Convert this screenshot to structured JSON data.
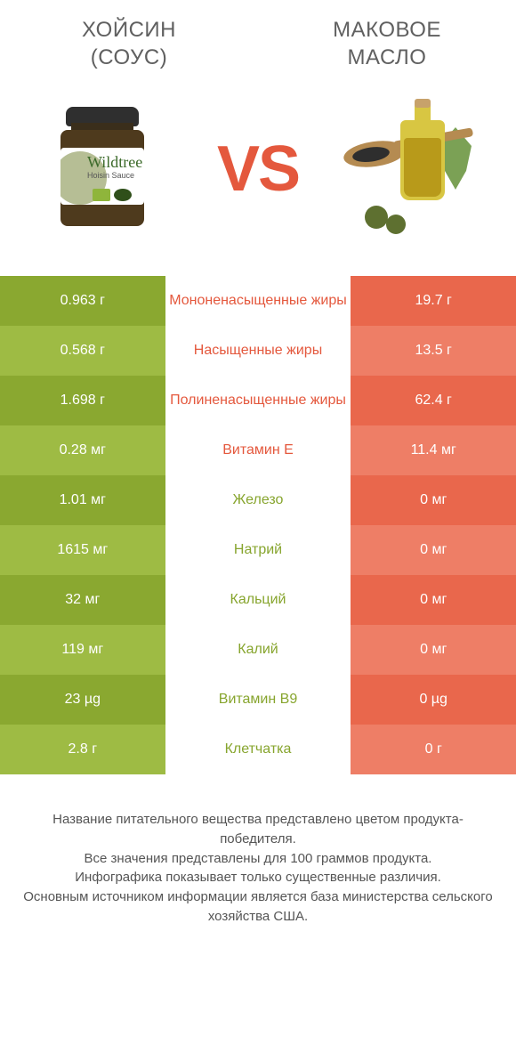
{
  "colors": {
    "green_dark": "#8aa830",
    "green_light": "#9ebb44",
    "orange_dark": "#e9674c",
    "orange_light": "#ee7e66",
    "green_text": "#87a52e",
    "orange_text": "#e4583d",
    "white": "#ffffff"
  },
  "products": {
    "left": {
      "title_line1": "Хойсин",
      "title_line2": "(соус)"
    },
    "right": {
      "title_line1": "Маковое",
      "title_line2": "масло"
    }
  },
  "vs_label": "VS",
  "rows": [
    {
      "left": "0.963 г",
      "label": "Мононенасыщенные жиры",
      "right": "19.7 г",
      "winner": "right"
    },
    {
      "left": "0.568 г",
      "label": "Насыщенные жиры",
      "right": "13.5 г",
      "winner": "right"
    },
    {
      "left": "1.698 г",
      "label": "Полиненасыщенные жиры",
      "right": "62.4 г",
      "winner": "right"
    },
    {
      "left": "0.28 мг",
      "label": "Витамин E",
      "right": "11.4 мг",
      "winner": "right"
    },
    {
      "left": "1.01 мг",
      "label": "Железо",
      "right": "0 мг",
      "winner": "left"
    },
    {
      "left": "1615 мг",
      "label": "Натрий",
      "right": "0 мг",
      "winner": "left"
    },
    {
      "left": "32 мг",
      "label": "Кальций",
      "right": "0 мг",
      "winner": "left"
    },
    {
      "left": "119 мг",
      "label": "Калий",
      "right": "0 мг",
      "winner": "left"
    },
    {
      "left": "23 µg",
      "label": "Витамин B9",
      "right": "0 µg",
      "winner": "left"
    },
    {
      "left": "2.8 г",
      "label": "Клетчатка",
      "right": "0 г",
      "winner": "left"
    }
  ],
  "footnote": "Название питательного вещества представлено цветом продукта-победителя.\nВсе значения представлены для 100 граммов продукта.\nИнфографика показывает только существенные различия.\nОсновным источником информации является база министерства сельского хозяйства США."
}
